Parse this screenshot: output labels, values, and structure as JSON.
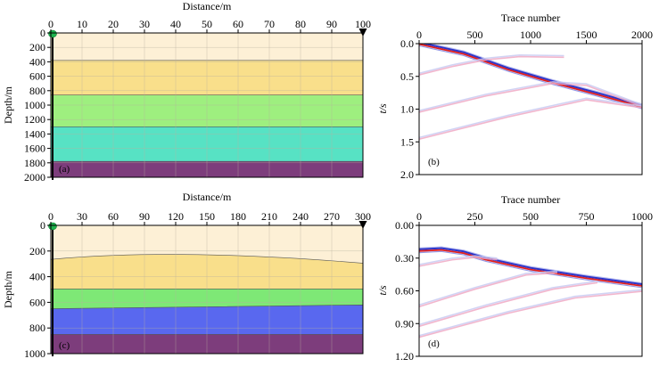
{
  "chart_data": [
    {
      "id": "a",
      "type": "layered-model",
      "panel_label": "(a)",
      "title": "",
      "xlabel": "Distance/m",
      "ylabel": "Depth/m",
      "xlim": [
        0,
        100
      ],
      "ylim": [
        0,
        2000
      ],
      "xticks": [
        "0",
        "10",
        "20",
        "30",
        "40",
        "50",
        "60",
        "70",
        "80",
        "90",
        "100"
      ],
      "yticks": [
        "0",
        "200",
        "400",
        "600",
        "800",
        "1000",
        "1200",
        "1400",
        "1600",
        "1800",
        "2000"
      ],
      "source_x": 0,
      "receiver_x": 100,
      "layers": [
        {
          "color": "#fdf0d6",
          "top_left": 0,
          "top_right": 0
        },
        {
          "color": "#f9df8b",
          "top_left": 380,
          "top_right": 380
        },
        {
          "color": "#9eef7f",
          "top_left": 860,
          "top_right": 860
        },
        {
          "color": "#57e2c4",
          "top_left": 1300,
          "top_right": 1300
        },
        {
          "color": "#7d3d7c",
          "top_left": 1780,
          "top_right": 1780
        }
      ]
    },
    {
      "id": "b",
      "type": "seismic-gather",
      "panel_label": "(b)",
      "title": "",
      "xlabel": "Trace number",
      "ylabel": "t/s",
      "xlim": [
        0,
        2000
      ],
      "ylim": [
        0,
        2.0
      ],
      "xticks": [
        "0",
        "500",
        "1000",
        "1500",
        "2000"
      ],
      "yticks": [
        "0.0",
        "0.5",
        "1.0",
        "1.5",
        "2.0"
      ],
      "events": [
        {
          "name": "direct",
          "strength": "strong",
          "points": [
            [
              0,
              0.0
            ],
            [
              400,
              0.15
            ],
            [
              800,
              0.39
            ],
            [
              1200,
              0.59
            ],
            [
              1600,
              0.77
            ],
            [
              2000,
              0.96
            ]
          ]
        },
        {
          "name": "reflection-1",
          "strength": "weak",
          "points": [
            [
              0,
              0.47
            ],
            [
              300,
              0.34
            ],
            [
              600,
              0.24
            ],
            [
              900,
              0.19
            ],
            [
              1300,
              0.2
            ]
          ]
        },
        {
          "name": "reflection-2",
          "strength": "weak",
          "points": [
            [
              0,
              1.04
            ],
            [
              600,
              0.79
            ],
            [
              1200,
              0.6
            ],
            [
              1500,
              0.63
            ],
            [
              2000,
              0.95
            ]
          ]
        },
        {
          "name": "reflection-3",
          "strength": "weak",
          "points": [
            [
              0,
              1.45
            ],
            [
              800,
              1.11
            ],
            [
              1500,
              0.85
            ],
            [
              2000,
              0.97
            ]
          ]
        }
      ]
    },
    {
      "id": "c",
      "type": "layered-model",
      "panel_label": "(c)",
      "title": "",
      "xlabel": "Distance/m",
      "ylabel": "Depth/m",
      "xlim": [
        0,
        300
      ],
      "ylim": [
        0,
        1000
      ],
      "xticks": [
        "0",
        "30",
        "60",
        "90",
        "120",
        "150",
        "180",
        "210",
        "240",
        "270",
        "300"
      ],
      "yticks": [
        "0",
        "200",
        "400",
        "600",
        "800",
        "1000"
      ],
      "source_x": 0,
      "receiver_x": 300,
      "layers": [
        {
          "color": "#fdf0d6",
          "top_left": 0,
          "top_right": 0
        },
        {
          "color": "#f9df8b",
          "top_left": 265,
          "top_mid": 230,
          "mid_x": 120,
          "top_right": 295
        },
        {
          "color": "#7ee876",
          "top_left": 495,
          "top_right": 495
        },
        {
          "color": "#5968ef",
          "top_left": 650,
          "top_right": 620
        },
        {
          "color": "#7d3d7c",
          "top_left": 850,
          "top_right": 850
        }
      ]
    },
    {
      "id": "d",
      "type": "seismic-gather",
      "panel_label": "(d)",
      "title": "",
      "xlabel": "Trace number",
      "ylabel": "t/s",
      "xlim": [
        0,
        1000
      ],
      "ylim": [
        0,
        1.2
      ],
      "xticks": [
        "0",
        "250",
        "500",
        "750",
        "1000"
      ],
      "yticks": [
        "0.00",
        "0.30",
        "0.60",
        "0.90",
        "1.20"
      ],
      "events": [
        {
          "name": "direct",
          "strength": "strong",
          "points": [
            [
              0,
              0.23
            ],
            [
              100,
              0.22
            ],
            [
              200,
              0.25
            ],
            [
              300,
              0.31
            ],
            [
              500,
              0.4
            ],
            [
              750,
              0.48
            ],
            [
              1000,
              0.55
            ]
          ]
        },
        {
          "name": "reflection-1",
          "strength": "weak",
          "points": [
            [
              0,
              0.37
            ],
            [
              150,
              0.31
            ],
            [
              250,
              0.29
            ],
            [
              350,
              0.31
            ]
          ]
        },
        {
          "name": "reflection-2",
          "strength": "weak",
          "points": [
            [
              0,
              0.74
            ],
            [
              250,
              0.58
            ],
            [
              480,
              0.45
            ],
            [
              620,
              0.43
            ]
          ]
        },
        {
          "name": "reflection-3",
          "strength": "weak",
          "points": [
            [
              0,
              0.92
            ],
            [
              300,
              0.74
            ],
            [
              600,
              0.58
            ],
            [
              800,
              0.52
            ]
          ]
        },
        {
          "name": "reflection-4",
          "strength": "weak",
          "points": [
            [
              0,
              1.02
            ],
            [
              400,
              0.8
            ],
            [
              700,
              0.66
            ],
            [
              1000,
              0.6
            ]
          ]
        }
      ]
    }
  ]
}
